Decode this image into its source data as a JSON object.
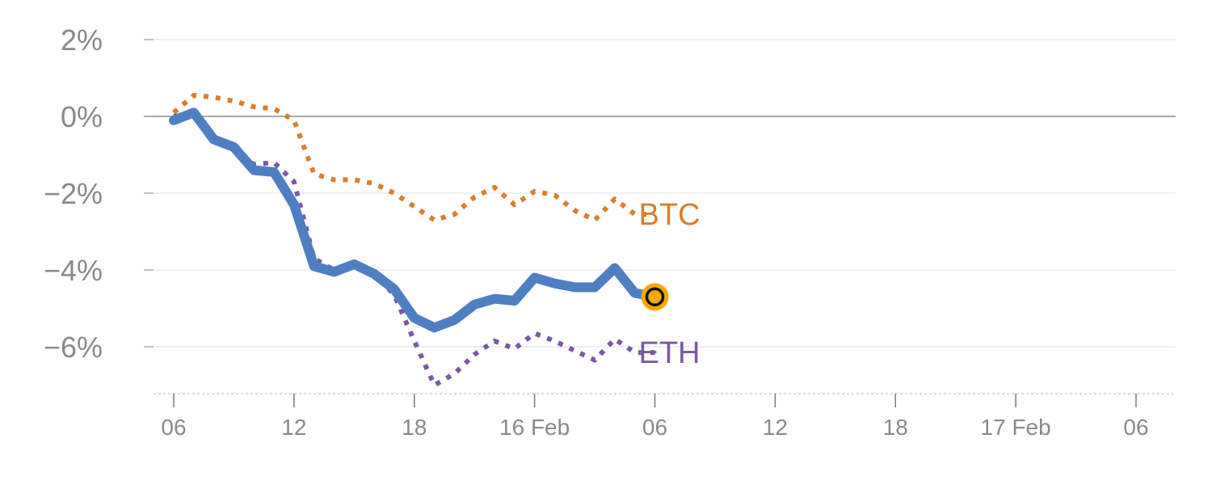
{
  "chart_data": {
    "type": "line",
    "x_unit": "hours",
    "xlim": [
      6,
      54
    ],
    "ylim": [
      -7.3,
      2.0
    ],
    "grid": true,
    "y_ticks": [
      {
        "value": 2,
        "label": "2%"
      },
      {
        "value": 0,
        "label": "0%"
      },
      {
        "value": -2,
        "label": "−2%"
      },
      {
        "value": -4,
        "label": "−4%"
      },
      {
        "value": -6,
        "label": "−6%"
      }
    ],
    "x_ticks": [
      {
        "value": 6,
        "label": "06"
      },
      {
        "value": 12,
        "label": "12"
      },
      {
        "value": 18,
        "label": "18"
      },
      {
        "value": 24,
        "label": "16 Feb"
      },
      {
        "value": 30,
        "label": "06"
      },
      {
        "value": 36,
        "label": "12"
      },
      {
        "value": 42,
        "label": "18"
      },
      {
        "value": 48,
        "label": "17 Feb"
      },
      {
        "value": 54,
        "label": "06"
      }
    ],
    "x": [
      6,
      7,
      8,
      9,
      10,
      11,
      12,
      13,
      14,
      15,
      16,
      17,
      18,
      19,
      20,
      21,
      22,
      23,
      24,
      25,
      26,
      27,
      28,
      29,
      30
    ],
    "series": [
      {
        "key": "main",
        "color": "#4e7fc3",
        "style": "solid",
        "values": [
          -0.1,
          0.1,
          -0.6,
          -0.8,
          -1.4,
          -1.45,
          -2.3,
          -3.9,
          -4.05,
          -3.85,
          -4.1,
          -4.5,
          -5.25,
          -5.5,
          -5.3,
          -4.9,
          -4.75,
          -4.8,
          -4.2,
          -4.35,
          -4.45,
          -4.45,
          -3.95,
          -4.6,
          -4.7
        ]
      },
      {
        "key": "btc",
        "name": "BTC",
        "color": "#d97f2e",
        "style": "dotted",
        "values": [
          0.1,
          0.55,
          0.5,
          0.4,
          0.25,
          0.2,
          -0.1,
          -1.5,
          -1.65,
          -1.65,
          -1.75,
          -2.0,
          -2.35,
          -2.7,
          -2.55,
          -2.1,
          -1.85,
          -2.3,
          -1.95,
          -2.05,
          -2.45,
          -2.7,
          -2.15,
          -2.55,
          -2.55
        ]
      },
      {
        "key": "eth",
        "name": "ETH",
        "color": "#7a5aa0",
        "style": "dotted",
        "values": [
          0.0,
          0.05,
          -0.6,
          -0.85,
          -1.25,
          -1.2,
          -1.7,
          -3.7,
          -4.0,
          -3.8,
          -4.1,
          -4.65,
          -5.85,
          -7.0,
          -6.7,
          -6.2,
          -5.85,
          -6.05,
          -5.65,
          -5.85,
          -6.1,
          -6.35,
          -5.8,
          -6.15,
          -6.15
        ]
      }
    ],
    "marker": {
      "x": 30,
      "y": -4.7,
      "fill": "#f5a800"
    }
  }
}
